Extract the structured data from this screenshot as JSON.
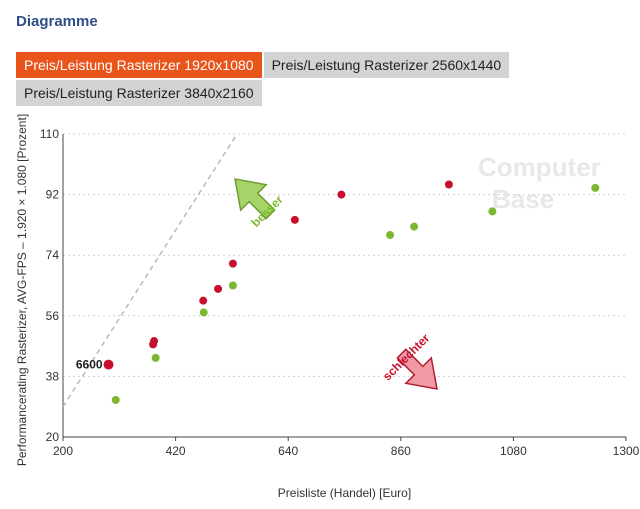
{
  "heading": "Diagramme",
  "tabs": [
    {
      "label": "Preis/Leistung Rasterizer 1920x1080",
      "active": true
    },
    {
      "label": "Preis/Leistung Rasterizer 2560x1440",
      "active": false
    },
    {
      "label": "Preis/Leistung Rasterizer 3840x2160",
      "active": false
    }
  ],
  "watermark": [
    "Computer",
    "Base"
  ],
  "chart_data": {
    "type": "scatter",
    "xlabel": "Preisliste (Handel) [Euro]",
    "ylabel": "Performancerating Rasterizer, AVG-FPS – 1.920 × 1.080 [Prozent]",
    "xlim": [
      200,
      1300
    ],
    "ylim": [
      20,
      110
    ],
    "xticks": [
      200,
      420,
      640,
      860,
      1080,
      1300
    ],
    "yticks": [
      20,
      38,
      56,
      74,
      92,
      110
    ],
    "grid": "horizontal dotted",
    "diagonal": {
      "from": [
        200,
        29
      ],
      "to": [
        540,
        110
      ]
    },
    "arrows": [
      {
        "label": "besser",
        "color": "#7cb82f",
        "direction": "up-left"
      },
      {
        "label": "schlechter",
        "color": "#c8102e",
        "direction": "down-right"
      }
    ],
    "highlight": {
      "label": "6600",
      "x": 289,
      "y": 41.5
    },
    "series": [
      {
        "color": "#c8102e",
        "points": [
          {
            "x": 289,
            "y": 41.5
          },
          {
            "x": 378,
            "y": 48.5
          },
          {
            "x": 376,
            "y": 47.5
          },
          {
            "x": 474,
            "y": 60.5
          },
          {
            "x": 503,
            "y": 64.0
          },
          {
            "x": 532,
            "y": 71.5
          },
          {
            "x": 653,
            "y": 84.5
          },
          {
            "x": 744,
            "y": 92.0
          },
          {
            "x": 954,
            "y": 95.0
          }
        ]
      },
      {
        "color": "#7cb82f",
        "points": [
          {
            "x": 303,
            "y": 31.0
          },
          {
            "x": 381,
            "y": 43.5
          },
          {
            "x": 475,
            "y": 57.0
          },
          {
            "x": 532,
            "y": 65.0
          },
          {
            "x": 839,
            "y": 80.0
          },
          {
            "x": 886,
            "y": 82.5
          },
          {
            "x": 1039,
            "y": 87.0
          },
          {
            "x": 1240,
            "y": 94.0
          }
        ]
      }
    ]
  }
}
